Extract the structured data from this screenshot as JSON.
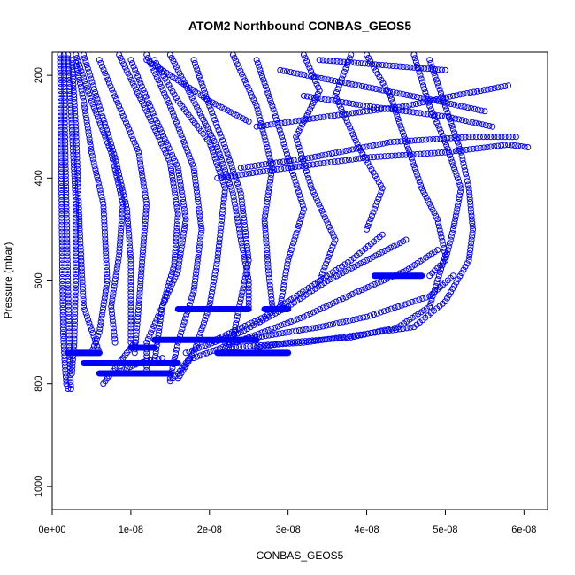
{
  "chart_data": {
    "type": "scatter",
    "title": "ATOM2 Northbound CONBAS_GEOS5",
    "xlabel": "CONBAS_GEOS5",
    "ylabel": "Pressure (mbar)",
    "xlim": [
      0,
      6.3e-08
    ],
    "ylim": [
      1045,
      155
    ],
    "y_reversed": true,
    "grid": false,
    "legend": "none",
    "marker": "open circle",
    "color": "#0000ff",
    "x_ticks": [
      {
        "value": 0,
        "label": "0e+00"
      },
      {
        "value": 1e-08,
        "label": "1e-08"
      },
      {
        "value": 2e-08,
        "label": "2e-08"
      },
      {
        "value": 3e-08,
        "label": "3e-08"
      },
      {
        "value": 4e-08,
        "label": "4e-08"
      },
      {
        "value": 5e-08,
        "label": "5e-08"
      },
      {
        "value": 6e-08,
        "label": "6e-08"
      }
    ],
    "y_ticks": [
      {
        "value": 200,
        "label": "200"
      },
      {
        "value": 400,
        "label": "400"
      },
      {
        "value": 600,
        "label": "600"
      },
      {
        "value": 800,
        "label": "800"
      },
      {
        "value": 1000,
        "label": "1000"
      }
    ],
    "series": [
      {
        "x": [
          1e-09,
          1.1e-09,
          1.2e-09,
          1.3e-09,
          1.4e-09,
          1.6e-09,
          1.8e-09,
          2e-09
        ],
        "y": [
          160,
          300,
          450,
          600,
          700,
          760,
          800,
          810
        ]
      },
      {
        "x": [
          1.5e-09,
          1.6e-09,
          1.8e-09,
          2e-09,
          2.2e-09,
          2.3e-09,
          2.4e-09
        ],
        "y": [
          160,
          300,
          450,
          600,
          720,
          790,
          810
        ]
      },
      {
        "x": [
          2e-09,
          2.5e-09,
          3e-09,
          3e-09,
          2.8e-09,
          2.5e-09
        ],
        "y": [
          160,
          300,
          450,
          600,
          720,
          780
        ]
      },
      {
        "x": [
          2.5e-09,
          3e-09,
          3.5e-09,
          4e-09,
          6e-09
        ],
        "y": [
          170,
          300,
          500,
          650,
          740
        ]
      },
      {
        "x": [
          3e-09,
          4e-09,
          5e-09,
          6.5e-09,
          7e-09,
          6e-09,
          5e-09
        ],
        "y": [
          175,
          250,
          350,
          450,
          600,
          700,
          740
        ]
      },
      {
        "x": [
          3e-09,
          5e-09,
          7.5e-09,
          9e-09,
          8.5e-09,
          7.5e-09,
          8e-09
        ],
        "y": [
          160,
          250,
          350,
          450,
          550,
          650,
          720
        ]
      },
      {
        "x": [
          4e-09,
          6e-09,
          8e-09,
          9.5e-09,
          1e-08,
          1e-08
        ],
        "y": [
          160,
          260,
          360,
          460,
          560,
          720
        ]
      },
      {
        "x": [
          6e-09,
          8.5e-09,
          1.1e-08,
          1.2e-08,
          1.15e-08,
          1.1e-08,
          1.05e-08
        ],
        "y": [
          170,
          260,
          350,
          450,
          550,
          650,
          740
        ]
      },
      {
        "x": [
          8.5e-09,
          1.2e-08,
          1.5e-08,
          1.6e-08,
          1.55e-08,
          1.4e-08,
          1.3e-08
        ],
        "y": [
          160,
          270,
          370,
          470,
          570,
          650,
          760
        ]
      },
      {
        "x": [
          1e-08,
          1.3e-08,
          1.6e-08,
          1.7e-08,
          1.6e-08,
          1.4e-08,
          1.2e-08,
          1.2e-08
        ],
        "y": [
          170,
          280,
          380,
          480,
          580,
          650,
          720,
          780
        ]
      },
      {
        "x": [
          1.2e-08,
          1.5e-08,
          1.8e-08,
          1.9e-08,
          1.8e-08,
          1.6e-08,
          1.5e-08
        ],
        "y": [
          160,
          260,
          380,
          500,
          620,
          720,
          790
        ]
      },
      {
        "x": [
          1.3e-08,
          1.6e-08,
          2e-08,
          2.2e-08,
          2.1e-08,
          2e-08,
          1.8e-08,
          1.6e-08
        ],
        "y": [
          170,
          250,
          330,
          420,
          560,
          650,
          740,
          790
        ]
      },
      {
        "x": [
          1.5e-08,
          1.8e-08,
          2.1e-08,
          2.3e-08,
          2.4e-08,
          2.5e-08,
          2.5e-08
        ],
        "y": [
          160,
          250,
          340,
          430,
          520,
          600,
          650
        ]
      },
      {
        "x": [
          1.8e-08,
          2e-08,
          2.2e-08,
          2.4e-08,
          2.5e-08,
          2.3e-08
        ],
        "y": [
          170,
          260,
          340,
          430,
          560,
          710
        ]
      },
      {
        "x": [
          2.3e-08,
          2.6e-08,
          2.8e-08,
          2.7e-08,
          2.75e-08,
          2.8e-08
        ],
        "y": [
          160,
          260,
          380,
          480,
          580,
          650
        ]
      },
      {
        "x": [
          2.6e-08,
          2.8e-08,
          3e-08,
          3.2e-08,
          3e-08,
          2.9e-08
        ],
        "y": [
          170,
          260,
          360,
          460,
          560,
          650
        ]
      },
      {
        "x": [
          3.2e-08,
          3.4e-08,
          3.1e-08,
          3.3e-08,
          3.6e-08,
          3.4e-08
        ],
        "y": [
          160,
          230,
          320,
          420,
          520,
          600
        ]
      },
      {
        "x": [
          3.8e-08,
          3.6e-08,
          3.9e-08,
          4.2e-08,
          4e-08
        ],
        "y": [
          160,
          240,
          340,
          420,
          500
        ]
      },
      {
        "x": [
          4.6e-08,
          4.8e-08,
          5e-08,
          5.2e-08,
          5.1e-08,
          5e-08,
          4.8e-08
        ],
        "y": [
          160,
          260,
          330,
          420,
          500,
          560,
          590
        ]
      },
      {
        "x": [
          4.8e-08,
          5e-08,
          5.2e-08,
          5.3e-08,
          5.35e-08,
          5.3e-08,
          5e-08,
          4.6e-08,
          3.2e-08,
          2.2e-08
        ],
        "y": [
          170,
          260,
          350,
          420,
          500,
          560,
          640,
          690,
          720,
          730
        ]
      },
      {
        "x": [
          4e-08,
          4.3e-08,
          4.5e-08,
          4.7e-08,
          4.9e-08,
          5e-08,
          4.8e-08,
          4.4e-08,
          3.8e-08,
          3e-08,
          2.6e-08
        ],
        "y": [
          160,
          240,
          330,
          420,
          480,
          550,
          650,
          690,
          710,
          720,
          730
        ]
      },
      {
        "x": [
          2.2e-08,
          2.8e-08,
          3.4e-08,
          4e-08,
          4.4e-08,
          4.8e-08,
          5.1e-08
        ],
        "y": [
          720,
          705,
          690,
          670,
          650,
          630,
          590
        ]
      },
      {
        "x": [
          1.8e-08,
          2.5e-08,
          3.2e-08,
          3.9e-08,
          4.5e-08,
          4.9e-08
        ],
        "y": [
          750,
          710,
          670,
          620,
          580,
          540
        ]
      },
      {
        "x": [
          1.7e-08,
          2.4e-08,
          3e-08,
          3.5e-08,
          4e-08,
          4.5e-08
        ],
        "y": [
          740,
          700,
          650,
          600,
          560,
          520
        ]
      },
      {
        "x": [
          2e-08,
          2.7e-08,
          3.3e-08,
          3.8e-08,
          4.2e-08
        ],
        "y": [
          720,
          670,
          610,
          560,
          510
        ]
      },
      {
        "x": [
          2.1e-08,
          3e-08,
          4e-08,
          5e-08,
          5.8e-08,
          6.05e-08
        ],
        "y": [
          400,
          380,
          360,
          350,
          335,
          340
        ]
      },
      {
        "x": [
          2.4e-08,
          3.3e-08,
          4.3e-08,
          5.3e-08,
          5.9e-08
        ],
        "y": [
          380,
          360,
          330,
          320,
          320
        ]
      },
      {
        "x": [
          3.2e-08,
          4e-08,
          5e-08,
          5.6e-08
        ],
        "y": [
          240,
          260,
          280,
          300
        ]
      },
      {
        "x": [
          2.9e-08,
          3.9e-08,
          4.9e-08,
          5.5e-08
        ],
        "y": [
          190,
          220,
          250,
          270
        ]
      },
      {
        "x": [
          2.6e-08,
          3.5e-08,
          4.5e-08,
          5.1e-08,
          5.8e-08
        ],
        "y": [
          300,
          280,
          260,
          240,
          220
        ]
      },
      {
        "x": [
          3.4e-08,
          4.2e-08,
          5e-08
        ],
        "y": [
          170,
          180,
          190
        ]
      },
      {
        "x": [
          1.2e-08,
          1.6e-08,
          2e-08,
          2.5e-08
        ],
        "y": [
          170,
          210,
          250,
          290
        ]
      },
      {
        "x": [
          6.5e-09,
          7.5e-09,
          8.5e-09,
          9.5e-09,
          1.05e-08
        ],
        "y": [
          800,
          780,
          760,
          740,
          720
        ]
      },
      {
        "x": [
          8e-09,
          9.5e-09,
          1.1e-08,
          1.25e-08,
          1.4e-08
        ],
        "y": [
          780,
          770,
          760,
          755,
          750
        ]
      },
      {
        "x": [
          1.5e-08,
          1.6e-08,
          1.7e-08,
          1.8e-08
        ],
        "y": [
          795,
          780,
          760,
          740
        ]
      }
    ],
    "segments": [
      {
        "x": [
          2e-09,
          6e-09
        ],
        "y": [
          740,
          740
        ]
      },
      {
        "x": [
          4e-09,
          1.2e-08
        ],
        "y": [
          760,
          760
        ]
      },
      {
        "x": [
          6e-09,
          1.2e-08
        ],
        "y": [
          780,
          780
        ]
      },
      {
        "x": [
          1.2e-08,
          1.6e-08
        ],
        "y": [
          760,
          760
        ]
      },
      {
        "x": [
          1e-08,
          1.3e-08
        ],
        "y": [
          730,
          730
        ]
      },
      {
        "x": [
          1.3e-08,
          2.6e-08
        ],
        "y": [
          715,
          715
        ]
      },
      {
        "x": [
          1.6e-08,
          2.5e-08
        ],
        "y": [
          655,
          655
        ]
      },
      {
        "x": [
          2.1e-08,
          3e-08
        ],
        "y": [
          740,
          740
        ]
      },
      {
        "x": [
          2.7e-08,
          3e-08
        ],
        "y": [
          655,
          655
        ]
      },
      {
        "x": [
          4.1e-08,
          4.7e-08
        ],
        "y": [
          590,
          590
        ]
      },
      {
        "x": [
          1.1e-08,
          1.5e-08
        ],
        "y": [
          780,
          780
        ]
      }
    ]
  }
}
